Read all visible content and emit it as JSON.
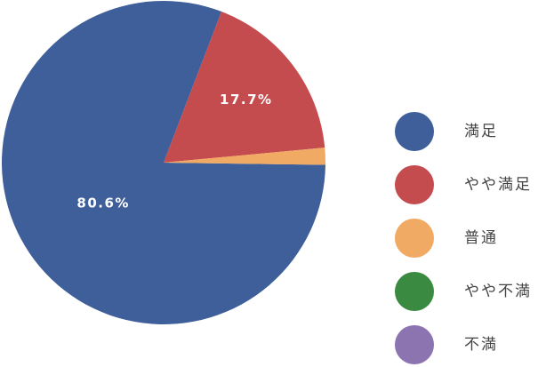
{
  "chart_data": {
    "type": "pie",
    "categories": [
      "満足",
      "やや満足",
      "普通",
      "やや不満",
      "不満"
    ],
    "values": [
      80.6,
      17.7,
      1.7,
      0,
      0
    ],
    "value_labels": [
      "80.6%",
      "17.7%",
      null,
      null,
      null
    ],
    "colors": [
      "#3f5f9a",
      "#c44b4e",
      "#f0aa64",
      "#3a8a41",
      "#8c74b1"
    ]
  }
}
